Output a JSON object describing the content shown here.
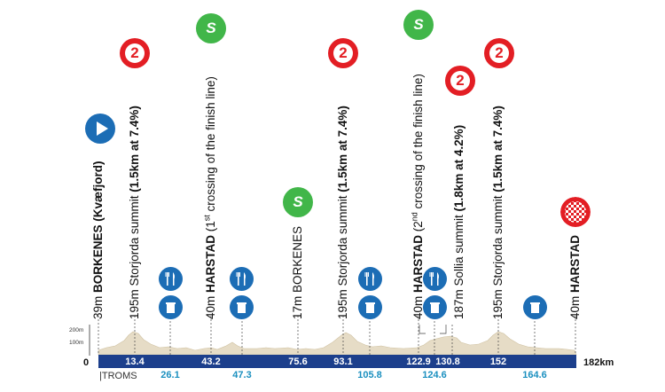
{
  "profile": {
    "total_km": 182,
    "start_label": "0",
    "end_label": "182km",
    "region_label": "|TROMS",
    "y_ticks": [
      "200m",
      "100m"
    ]
  },
  "km_top": [
    "13.4",
    "43.2",
    "75.6",
    "93.1",
    "122.9",
    "130.8",
    "152"
  ],
  "km_bottom": [
    "26.1",
    "47.3",
    "105.8",
    "124.6",
    "164.6"
  ],
  "waypoints": [
    {
      "id": "start",
      "prefix": "39m ",
      "bold": "BORKENES (Kvæfjord)",
      "suffix": ""
    },
    {
      "id": "kom1",
      "prefix": "195m Storjorda summit ",
      "bold": "(1.5km at 7.4%)",
      "suffix": ""
    },
    {
      "id": "sprint1",
      "prefix": "40m ",
      "bold": "HARSTAD",
      "suffix": " (1",
      "sup": "st",
      "suffix2": " crossing of the finish line)"
    },
    {
      "id": "sprint2",
      "prefix": "17m BORKENES",
      "bold": "",
      "suffix": ""
    },
    {
      "id": "kom2",
      "prefix": "195m Storjorda summit ",
      "bold": "(1.5km at 7.4%)",
      "suffix": ""
    },
    {
      "id": "sprint3",
      "prefix": "40m ",
      "bold": "HARSTAD",
      "suffix": " (2",
      "sup": "nd",
      "suffix2": " crossing of the finish line)"
    },
    {
      "id": "kom3",
      "prefix": "187m Sollia summit ",
      "bold": "(1.8km at 4.2%)",
      "suffix": ""
    },
    {
      "id": "kom4",
      "prefix": "195m Storjorda summit ",
      "bold": "(1.5km at 7.4%)",
      "suffix": ""
    },
    {
      "id": "finish",
      "prefix": "40m ",
      "bold": "HARSTAD",
      "suffix": ""
    }
  ],
  "badges": {
    "kom": "2",
    "sprint": "S"
  },
  "colors": {
    "route_bar": "#1c3f8c",
    "terrain": "#e6dcc6",
    "kom": "#e31e24",
    "sprint": "#41b649",
    "start": "#1c6db5",
    "km_bottom": "#1a8fbf"
  },
  "icons": {
    "feed": "fork-knife-icon",
    "waste": "trash-bin-icon",
    "start": "play-arrow-icon",
    "finish": "checkered-flag-icon"
  }
}
